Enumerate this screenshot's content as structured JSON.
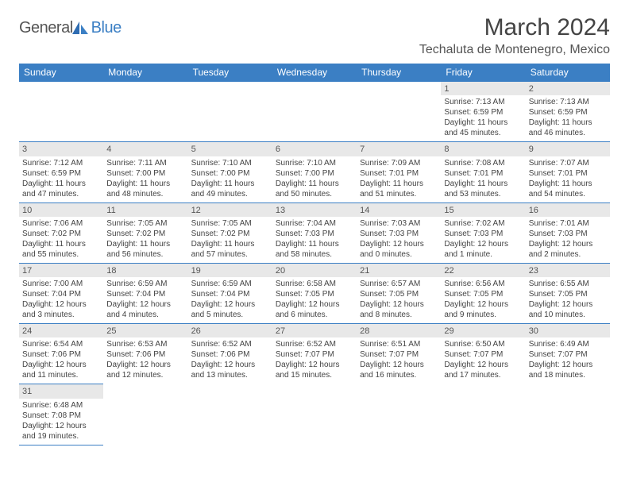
{
  "logo": {
    "general": "General",
    "blue": "Blue"
  },
  "header": {
    "title": "March 2024",
    "location": "Techaluta de Montenegro, Mexico"
  },
  "colors": {
    "header_bg": "#3b7fc4",
    "header_text": "#ffffff",
    "border": "#3b7fc4",
    "daynum_bg": "#e8e8e8",
    "text": "#444444"
  },
  "weekdays": [
    "Sunday",
    "Monday",
    "Tuesday",
    "Wednesday",
    "Thursday",
    "Friday",
    "Saturday"
  ],
  "weeks": [
    [
      {
        "empty": true
      },
      {
        "empty": true
      },
      {
        "empty": true
      },
      {
        "empty": true
      },
      {
        "empty": true
      },
      {
        "day": "1",
        "sunrise": "Sunrise: 7:13 AM",
        "sunset": "Sunset: 6:59 PM",
        "dl1": "Daylight: 11 hours",
        "dl2": "and 45 minutes."
      },
      {
        "day": "2",
        "sunrise": "Sunrise: 7:13 AM",
        "sunset": "Sunset: 6:59 PM",
        "dl1": "Daylight: 11 hours",
        "dl2": "and 46 minutes."
      }
    ],
    [
      {
        "day": "3",
        "sunrise": "Sunrise: 7:12 AM",
        "sunset": "Sunset: 6:59 PM",
        "dl1": "Daylight: 11 hours",
        "dl2": "and 47 minutes."
      },
      {
        "day": "4",
        "sunrise": "Sunrise: 7:11 AM",
        "sunset": "Sunset: 7:00 PM",
        "dl1": "Daylight: 11 hours",
        "dl2": "and 48 minutes."
      },
      {
        "day": "5",
        "sunrise": "Sunrise: 7:10 AM",
        "sunset": "Sunset: 7:00 PM",
        "dl1": "Daylight: 11 hours",
        "dl2": "and 49 minutes."
      },
      {
        "day": "6",
        "sunrise": "Sunrise: 7:10 AM",
        "sunset": "Sunset: 7:00 PM",
        "dl1": "Daylight: 11 hours",
        "dl2": "and 50 minutes."
      },
      {
        "day": "7",
        "sunrise": "Sunrise: 7:09 AM",
        "sunset": "Sunset: 7:01 PM",
        "dl1": "Daylight: 11 hours",
        "dl2": "and 51 minutes."
      },
      {
        "day": "8",
        "sunrise": "Sunrise: 7:08 AM",
        "sunset": "Sunset: 7:01 PM",
        "dl1": "Daylight: 11 hours",
        "dl2": "and 53 minutes."
      },
      {
        "day": "9",
        "sunrise": "Sunrise: 7:07 AM",
        "sunset": "Sunset: 7:01 PM",
        "dl1": "Daylight: 11 hours",
        "dl2": "and 54 minutes."
      }
    ],
    [
      {
        "day": "10",
        "sunrise": "Sunrise: 7:06 AM",
        "sunset": "Sunset: 7:02 PM",
        "dl1": "Daylight: 11 hours",
        "dl2": "and 55 minutes."
      },
      {
        "day": "11",
        "sunrise": "Sunrise: 7:05 AM",
        "sunset": "Sunset: 7:02 PM",
        "dl1": "Daylight: 11 hours",
        "dl2": "and 56 minutes."
      },
      {
        "day": "12",
        "sunrise": "Sunrise: 7:05 AM",
        "sunset": "Sunset: 7:02 PM",
        "dl1": "Daylight: 11 hours",
        "dl2": "and 57 minutes."
      },
      {
        "day": "13",
        "sunrise": "Sunrise: 7:04 AM",
        "sunset": "Sunset: 7:03 PM",
        "dl1": "Daylight: 11 hours",
        "dl2": "and 58 minutes."
      },
      {
        "day": "14",
        "sunrise": "Sunrise: 7:03 AM",
        "sunset": "Sunset: 7:03 PM",
        "dl1": "Daylight: 12 hours",
        "dl2": "and 0 minutes."
      },
      {
        "day": "15",
        "sunrise": "Sunrise: 7:02 AM",
        "sunset": "Sunset: 7:03 PM",
        "dl1": "Daylight: 12 hours",
        "dl2": "and 1 minute."
      },
      {
        "day": "16",
        "sunrise": "Sunrise: 7:01 AM",
        "sunset": "Sunset: 7:03 PM",
        "dl1": "Daylight: 12 hours",
        "dl2": "and 2 minutes."
      }
    ],
    [
      {
        "day": "17",
        "sunrise": "Sunrise: 7:00 AM",
        "sunset": "Sunset: 7:04 PM",
        "dl1": "Daylight: 12 hours",
        "dl2": "and 3 minutes."
      },
      {
        "day": "18",
        "sunrise": "Sunrise: 6:59 AM",
        "sunset": "Sunset: 7:04 PM",
        "dl1": "Daylight: 12 hours",
        "dl2": "and 4 minutes."
      },
      {
        "day": "19",
        "sunrise": "Sunrise: 6:59 AM",
        "sunset": "Sunset: 7:04 PM",
        "dl1": "Daylight: 12 hours",
        "dl2": "and 5 minutes."
      },
      {
        "day": "20",
        "sunrise": "Sunrise: 6:58 AM",
        "sunset": "Sunset: 7:05 PM",
        "dl1": "Daylight: 12 hours",
        "dl2": "and 6 minutes."
      },
      {
        "day": "21",
        "sunrise": "Sunrise: 6:57 AM",
        "sunset": "Sunset: 7:05 PM",
        "dl1": "Daylight: 12 hours",
        "dl2": "and 8 minutes."
      },
      {
        "day": "22",
        "sunrise": "Sunrise: 6:56 AM",
        "sunset": "Sunset: 7:05 PM",
        "dl1": "Daylight: 12 hours",
        "dl2": "and 9 minutes."
      },
      {
        "day": "23",
        "sunrise": "Sunrise: 6:55 AM",
        "sunset": "Sunset: 7:05 PM",
        "dl1": "Daylight: 12 hours",
        "dl2": "and 10 minutes."
      }
    ],
    [
      {
        "day": "24",
        "sunrise": "Sunrise: 6:54 AM",
        "sunset": "Sunset: 7:06 PM",
        "dl1": "Daylight: 12 hours",
        "dl2": "and 11 minutes."
      },
      {
        "day": "25",
        "sunrise": "Sunrise: 6:53 AM",
        "sunset": "Sunset: 7:06 PM",
        "dl1": "Daylight: 12 hours",
        "dl2": "and 12 minutes."
      },
      {
        "day": "26",
        "sunrise": "Sunrise: 6:52 AM",
        "sunset": "Sunset: 7:06 PM",
        "dl1": "Daylight: 12 hours",
        "dl2": "and 13 minutes."
      },
      {
        "day": "27",
        "sunrise": "Sunrise: 6:52 AM",
        "sunset": "Sunset: 7:07 PM",
        "dl1": "Daylight: 12 hours",
        "dl2": "and 15 minutes."
      },
      {
        "day": "28",
        "sunrise": "Sunrise: 6:51 AM",
        "sunset": "Sunset: 7:07 PM",
        "dl1": "Daylight: 12 hours",
        "dl2": "and 16 minutes."
      },
      {
        "day": "29",
        "sunrise": "Sunrise: 6:50 AM",
        "sunset": "Sunset: 7:07 PM",
        "dl1": "Daylight: 12 hours",
        "dl2": "and 17 minutes."
      },
      {
        "day": "30",
        "sunrise": "Sunrise: 6:49 AM",
        "sunset": "Sunset: 7:07 PM",
        "dl1": "Daylight: 12 hours",
        "dl2": "and 18 minutes."
      }
    ],
    [
      {
        "day": "31",
        "sunrise": "Sunrise: 6:48 AM",
        "sunset": "Sunset: 7:08 PM",
        "dl1": "Daylight: 12 hours",
        "dl2": "and 19 minutes."
      },
      {
        "empty": true
      },
      {
        "empty": true
      },
      {
        "empty": true
      },
      {
        "empty": true
      },
      {
        "empty": true
      },
      {
        "empty": true
      }
    ]
  ]
}
